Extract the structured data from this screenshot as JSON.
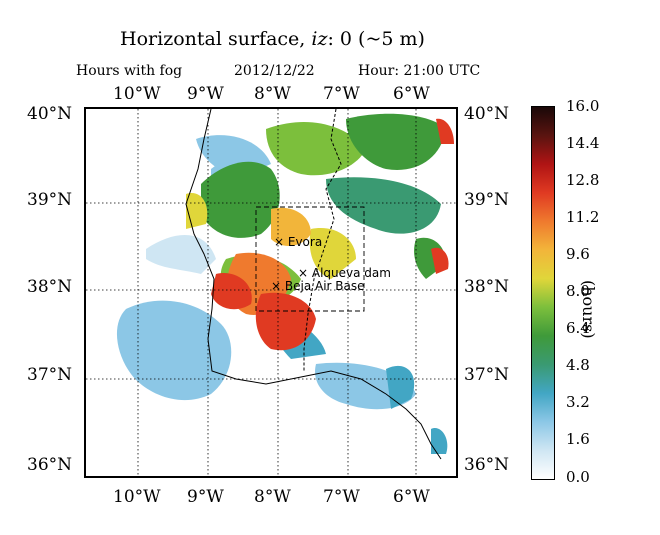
{
  "title": "Horizontal surface, iz: 0 (~5 m)",
  "title_parts": {
    "prefix": "Horizontal surface, ",
    "var": "iz",
    "suffix": ": 0 (~5 m)"
  },
  "subtitle": {
    "left": "Hours with fog",
    "center": "2012/12/22",
    "right": "Hour: 21:00 UTC"
  },
  "lon_ticks": [
    "10°W",
    "9°W",
    "8°W",
    "7°W",
    "6°W"
  ],
  "lat_ticks": [
    "40°N",
    "39°N",
    "38°N",
    "37°N",
    "36°N"
  ],
  "colorbar": {
    "unit": "(hours)",
    "ticks": [
      "16.0",
      "14.4",
      "12.8",
      "11.2",
      "9.6",
      "8.0",
      "6.4",
      "4.8",
      "3.2",
      "1.6",
      "0.0"
    ],
    "colors": [
      "#ffffff",
      "#cfe6f3",
      "#8cc7e6",
      "#42a6c4",
      "#3a9a72",
      "#3f9a3a",
      "#7cbf3c",
      "#e0d63a",
      "#f2b53a",
      "#ef7a2e",
      "#e03a22",
      "#b01414",
      "#5a1410",
      "#1a0808"
    ]
  },
  "places": [
    {
      "name": "Evora",
      "lon": -7.9,
      "lat": 38.57
    },
    {
      "name": "Alqueva dam",
      "lon": -7.5,
      "lat": 38.2
    },
    {
      "name": "Beja Air Base",
      "lon": -7.93,
      "lat": 38.08
    }
  ]
}
